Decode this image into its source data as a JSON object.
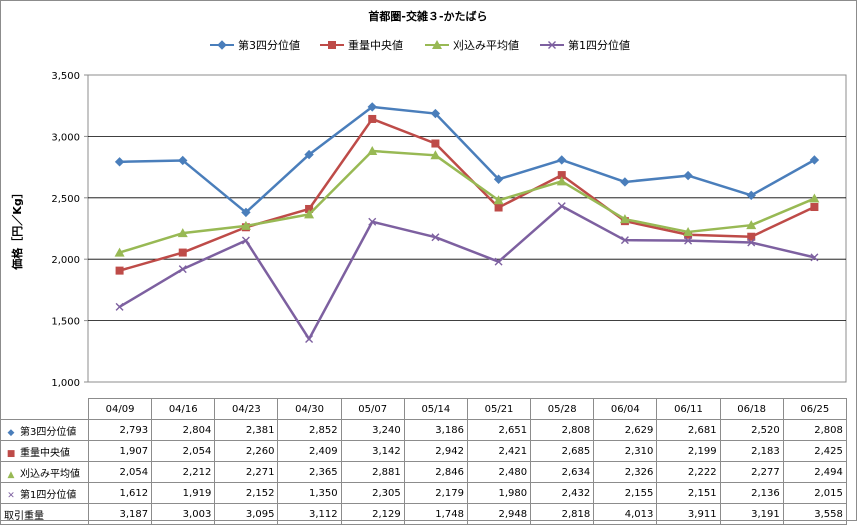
{
  "chart_data": {
    "type": "line",
    "title": "首都圏-交雑３-かたばら",
    "ylabel": "価格［円／Kg］",
    "xlabel": "",
    "categories": [
      "04/09",
      "04/16",
      "04/23",
      "04/30",
      "05/07",
      "05/14",
      "05/21",
      "05/28",
      "06/04",
      "06/11",
      "06/18",
      "06/25"
    ],
    "ylim": [
      1000,
      3500
    ],
    "yticks": [
      "1,000",
      "1,500",
      "2,000",
      "2,500",
      "3,000",
      "3,500"
    ],
    "ytick_values": [
      1000,
      1500,
      2000,
      2500,
      3000,
      3500
    ],
    "grid": true,
    "legend_position": "top",
    "series": [
      {
        "name": "第3四分位値",
        "color": "#4a7ebb",
        "marker": "diamond",
        "values": [
          2793,
          2804,
          2381,
          2852,
          3240,
          3186,
          2651,
          2808,
          2629,
          2681,
          2520,
          2808
        ]
      },
      {
        "name": "重量中央値",
        "color": "#be4b48",
        "marker": "square",
        "values": [
          1907,
          2054,
          2260,
          2409,
          3142,
          2942,
          2421,
          2685,
          2310,
          2199,
          2183,
          2425
        ]
      },
      {
        "name": "刈込み平均値",
        "color": "#98b954",
        "marker": "triangle",
        "values": [
          2054,
          2212,
          2271,
          2365,
          2881,
          2846,
          2480,
          2634,
          2326,
          2222,
          2277,
          2494
        ]
      },
      {
        "name": "第1四分位値",
        "color": "#7d60a0",
        "marker": "x",
        "values": [
          1612,
          1919,
          2152,
          1350,
          2305,
          2179,
          1980,
          2432,
          2155,
          2151,
          2136,
          2015
        ]
      }
    ],
    "table": {
      "rows": [
        {
          "label": "第3四分位値",
          "marker": "diamond",
          "color": "#4a7ebb",
          "values": [
            "2,793",
            "2,804",
            "2,381",
            "2,852",
            "3,240",
            "3,186",
            "2,651",
            "2,808",
            "2,629",
            "2,681",
            "2,520",
            "2,808"
          ]
        },
        {
          "label": "重量中央値",
          "marker": "square",
          "color": "#be4b48",
          "values": [
            "1,907",
            "2,054",
            "2,260",
            "2,409",
            "3,142",
            "2,942",
            "2,421",
            "2,685",
            "2,310",
            "2,199",
            "2,183",
            "2,425"
          ]
        },
        {
          "label": "刈込み平均値",
          "marker": "triangle",
          "color": "#98b954",
          "values": [
            "2,054",
            "2,212",
            "2,271",
            "2,365",
            "2,881",
            "2,846",
            "2,480",
            "2,634",
            "2,326",
            "2,222",
            "2,277",
            "2,494"
          ]
        },
        {
          "label": "第1四分位値",
          "marker": "x",
          "color": "#7d60a0",
          "values": [
            "1,612",
            "1,919",
            "2,152",
            "1,350",
            "2,305",
            "2,179",
            "1,980",
            "2,432",
            "2,155",
            "2,151",
            "2,136",
            "2,015"
          ]
        },
        {
          "label": "取引重量",
          "marker": "",
          "color": "",
          "values": [
            "3,187",
            "3,003",
            "3,095",
            "3,112",
            "2,129",
            "1,748",
            "2,948",
            "2,818",
            "4,013",
            "3,911",
            "3,191",
            "3,558"
          ]
        }
      ]
    }
  }
}
